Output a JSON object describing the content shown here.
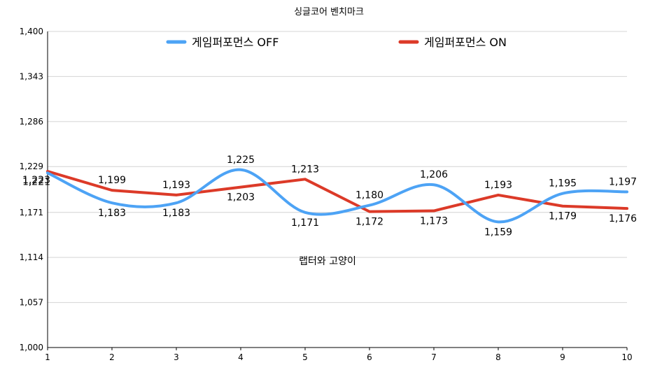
{
  "chart_data": {
    "type": "line",
    "title": "싱글코어 벤치마크",
    "annotation": "랩터와 고양이",
    "x": [
      1,
      2,
      3,
      4,
      5,
      6,
      7,
      8,
      9,
      10
    ],
    "ylim": [
      1000,
      1400
    ],
    "yticks": [
      "1,000",
      "1,057",
      "1,114",
      "1,171",
      "1,229",
      "1,286",
      "1,343",
      "1,400"
    ],
    "ytick_values": [
      1000,
      1057,
      1114,
      1171,
      1229,
      1286,
      1343,
      1400
    ],
    "grid": true,
    "legend_position": "top",
    "series": [
      {
        "name": "게임퍼포먼스 OFF",
        "color": "#4da3f5",
        "smooth": true,
        "values": [
          1221,
          1183,
          1183,
          1225,
          1171,
          1180,
          1206,
          1159,
          1195,
          1197
        ],
        "labels": [
          "1,221",
          "1,183",
          "1,183",
          "1,225",
          "1,171",
          "1,180",
          "1,206",
          "1,159",
          "1,195",
          "1,197"
        ]
      },
      {
        "name": "게임퍼포먼스 ON",
        "color": "#dc3a28",
        "smooth": false,
        "values": [
          1223,
          1199,
          1193,
          1203,
          1213,
          1172,
          1173,
          1193,
          1179,
          1176
        ],
        "labels": [
          "1,223",
          "1,199",
          "1,193",
          "1,203",
          "1,213",
          "1,172",
          "1,173",
          "1,193",
          "1,179",
          "1,176"
        ]
      }
    ]
  }
}
